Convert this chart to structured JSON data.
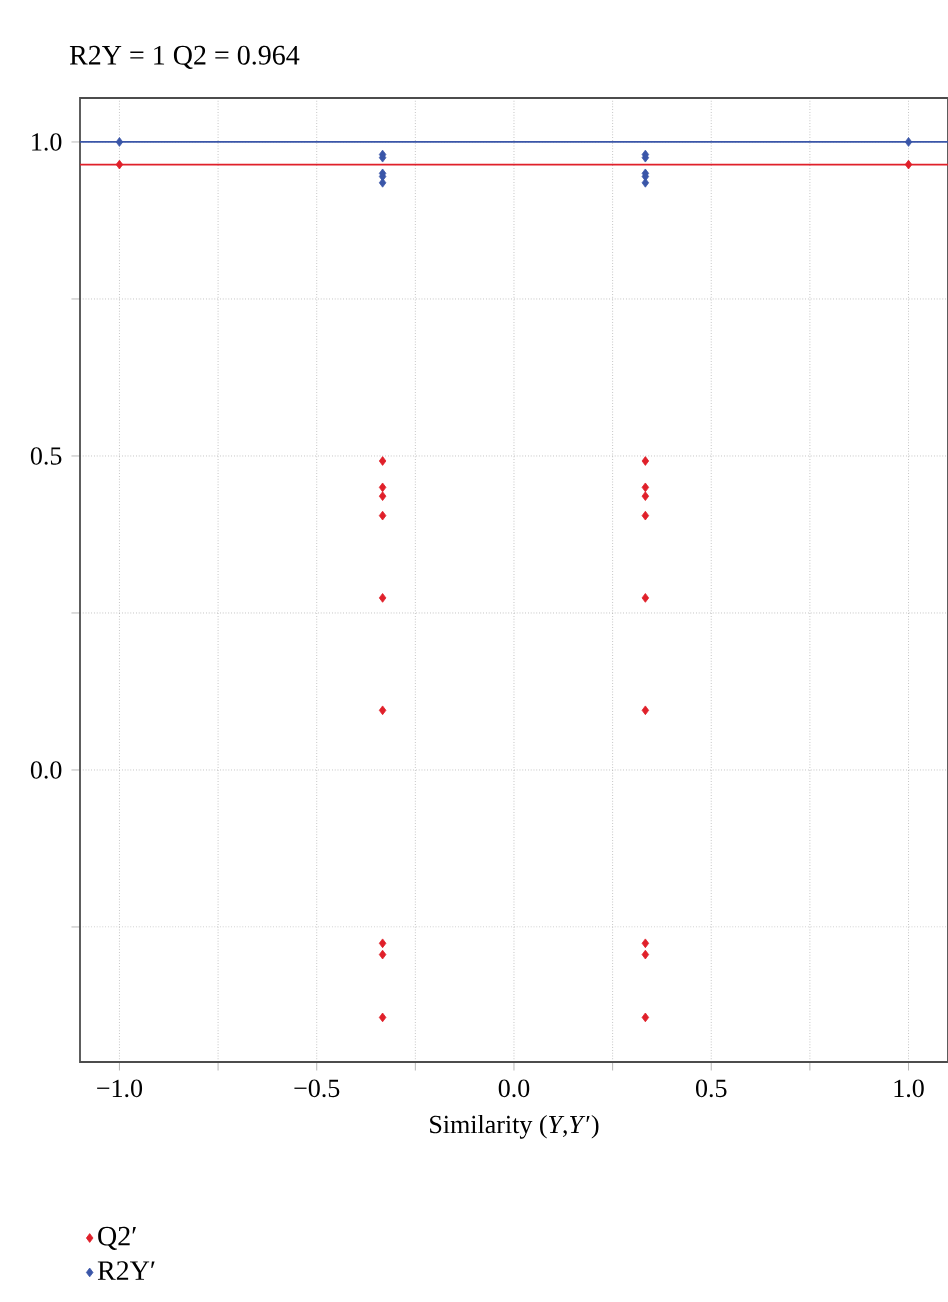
{
  "chart_data": {
    "type": "scatter",
    "title": "R2Y = 1  Q2 = 0.964",
    "xlabel": "Similarity (*Y*,*Y*′)",
    "series": [
      {
        "name": "Q2′",
        "color": "#e0202a",
        "x": [
          -1,
          -0.333,
          -0.333,
          -0.333,
          -0.333,
          -0.333,
          -0.333,
          -0.333,
          -0.333,
          -0.333,
          0.333,
          0.333,
          0.333,
          0.333,
          0.333,
          0.333,
          0.333,
          0.333,
          0.333,
          1
        ],
        "values": [
          0.964,
          0.492,
          0.45,
          0.436,
          0.405,
          0.274,
          0.095,
          -0.276,
          -0.294,
          -0.394,
          0.492,
          0.45,
          0.436,
          0.405,
          0.274,
          0.095,
          -0.276,
          -0.294,
          -0.394,
          0.964
        ]
      },
      {
        "name": "R2Y′",
        "color": "#3a56a8",
        "x": [
          -1,
          -0.333,
          -0.333,
          -0.333,
          -0.333,
          -0.333,
          0.333,
          0.333,
          0.333,
          0.333,
          0.333,
          1
        ],
        "values": [
          1,
          0.98,
          0.975,
          0.95,
          0.945,
          0.935,
          0.98,
          0.975,
          0.95,
          0.945,
          0.935,
          1
        ]
      }
    ],
    "ref_lines": [
      {
        "axis": "y",
        "value": 1,
        "color": "#3a56a8"
      },
      {
        "axis": "y",
        "value": 0.964,
        "color": "#e0202a"
      }
    ],
    "xlim": [
      -1.1,
      1.1
    ],
    "ylim": [
      -0.465,
      1.07
    ],
    "xticks": [
      {
        "value": -1,
        "label": "−1.0"
      },
      {
        "value": -0.75,
        "label": null
      },
      {
        "value": -0.5,
        "label": "−0.5"
      },
      {
        "value": -0.25,
        "label": null
      },
      {
        "value": 0,
        "label": "0.0"
      },
      {
        "value": 0.25,
        "label": null
      },
      {
        "value": 0.5,
        "label": "0.5"
      },
      {
        "value": 0.75,
        "label": null
      },
      {
        "value": 1,
        "label": "1.0"
      }
    ],
    "yticks": [
      {
        "value": -0.25,
        "label": null
      },
      {
        "value": 0,
        "label": "0.0"
      },
      {
        "value": 0.25,
        "label": null
      },
      {
        "value": 0.5,
        "label": "0.5"
      },
      {
        "value": 0.75,
        "label": null
      },
      {
        "value": 1,
        "label": "1.0"
      }
    ],
    "grid": true,
    "legend": "bottom left",
    "marker": "diamond"
  }
}
